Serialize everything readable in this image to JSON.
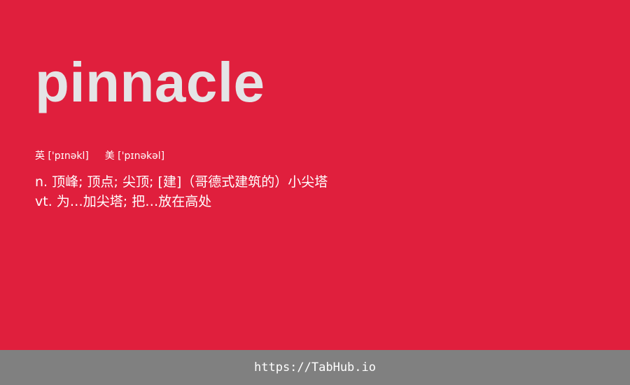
{
  "card": {
    "word": "pinnacle",
    "phonetic_uk_label": "英",
    "phonetic_uk": "['pɪnəkl]",
    "phonetic_us_label": "美",
    "phonetic_us": "['pɪnəkəl]",
    "definitions": [
      "n. 顶峰; 顶点; 尖顶; [建]（哥德式建筑的）小尖塔",
      "vt. 为…加尖塔; 把…放在高处"
    ]
  },
  "footer": {
    "link_text": "https://TabHub.io"
  },
  "colors": {
    "card_background": "#e01f3d",
    "word_text": "#e4e4e6",
    "footer_background": "#808080",
    "footer_text": "#ffffff"
  }
}
